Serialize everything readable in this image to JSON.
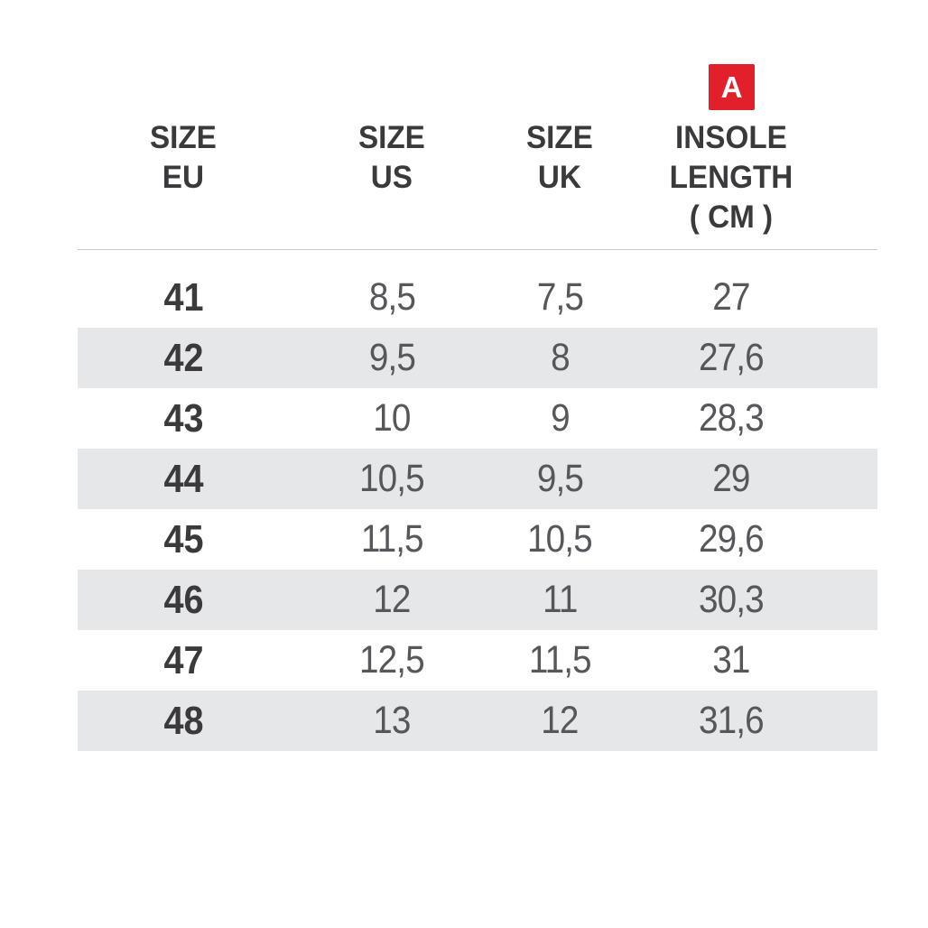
{
  "badge": {
    "label": "A"
  },
  "chart_data": {
    "type": "table",
    "columns": [
      {
        "id": "size_eu",
        "lines": [
          "SIZE",
          "EU"
        ]
      },
      {
        "id": "size_us",
        "lines": [
          "SIZE",
          "US"
        ]
      },
      {
        "id": "size_uk",
        "lines": [
          "SIZE",
          "UK"
        ]
      },
      {
        "id": "insole_length_cm",
        "lines": [
          "INSOLE",
          "LENGTH",
          "( CM )"
        ]
      }
    ],
    "rows": [
      [
        "41",
        "8,5",
        "7,5",
        "27"
      ],
      [
        "42",
        "9,5",
        "8",
        "27,6"
      ],
      [
        "43",
        "10",
        "9",
        "28,3"
      ],
      [
        "44",
        "10,5",
        "9,5",
        "29"
      ],
      [
        "45",
        "11,5",
        "10,5",
        "29,6"
      ],
      [
        "46",
        "12",
        "11",
        "30,3"
      ],
      [
        "47",
        "12,5",
        "11,5",
        "31"
      ],
      [
        "48",
        "13",
        "12",
        "31,6"
      ]
    ]
  },
  "colors": {
    "page_background": "#ffffff",
    "badge_background": "#e2202b",
    "badge_text": "#ffffff",
    "header_text": "#3a3a3c",
    "value_text": "#56575a",
    "stripe": "#e6e7e8",
    "divider": "#c7c7c7"
  }
}
